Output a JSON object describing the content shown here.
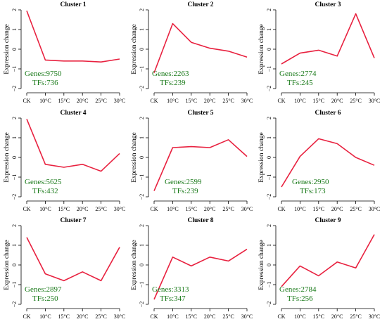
{
  "colors": {
    "line": "#e8213f",
    "annotation": "#1a7a1a",
    "axis": "#000000"
  },
  "chart_data": [
    {
      "type": "line",
      "title": "Cluster 1",
      "ylabel": "Expression change",
      "categories": [
        "CK",
        "10°C",
        "15°C",
        "20°C",
        "25°C",
        "30°C"
      ],
      "values": [
        1.95,
        -0.55,
        -0.6,
        -0.6,
        -0.65,
        -0.5
      ],
      "ylim": [
        -2,
        2
      ],
      "yticks": [
        "2",
        "1",
        "0",
        "−1",
        "−2"
      ],
      "annotation": [
        "Genes:9750",
        "TFs:736"
      ],
      "annotation_anchor": "left"
    },
    {
      "type": "line",
      "title": "Cluster 2",
      "ylabel": "Expression change",
      "categories": [
        "CK",
        "10°C",
        "15°C",
        "20°C",
        "25°C",
        "30°C"
      ],
      "values": [
        -1.2,
        1.3,
        0.35,
        0.05,
        -0.1,
        -0.4
      ],
      "ylim": [
        -2,
        2
      ],
      "yticks": [
        "2",
        "1",
        "0",
        "−1",
        "−2"
      ],
      "annotation": [
        "Genes:2263",
        "TFs:239"
      ],
      "annotation_anchor": "left"
    },
    {
      "type": "line",
      "title": "Cluster 3",
      "ylabel": "Expression change",
      "categories": [
        "CK",
        "10°C",
        "15°C",
        "20°C",
        "25°C",
        "30°C"
      ],
      "values": [
        -0.75,
        -0.2,
        -0.05,
        -0.35,
        1.8,
        -0.45
      ],
      "ylim": [
        -2,
        2
      ],
      "yticks": [
        "2",
        "1",
        "0",
        "−1",
        "−2"
      ],
      "annotation": [
        "Genes:2774",
        "TFs:245"
      ],
      "annotation_anchor": "left"
    },
    {
      "type": "line",
      "title": "Cluster 4",
      "ylabel": "Expression change",
      "categories": [
        "CK",
        "10°C",
        "15°C",
        "20°C",
        "25°C",
        "30°C"
      ],
      "values": [
        1.95,
        -0.35,
        -0.5,
        -0.35,
        -0.7,
        0.2
      ],
      "ylim": [
        -2,
        2
      ],
      "yticks": [
        "2",
        "1",
        "0",
        "−1",
        "−2"
      ],
      "annotation": [
        "Genes:5625",
        "TFs:432"
      ],
      "annotation_anchor": "left"
    },
    {
      "type": "line",
      "title": "Cluster 5",
      "ylabel": "Expression change",
      "categories": [
        "CK",
        "10°C",
        "15°C",
        "20°C",
        "25°C",
        "30°C"
      ],
      "values": [
        -1.7,
        0.5,
        0.55,
        0.5,
        0.9,
        0.05
      ],
      "ylim": [
        -2,
        2
      ],
      "yticks": [
        "2",
        "1",
        "0",
        "−1",
        "−2"
      ],
      "annotation": [
        "Genes:2599",
        "TFs:239"
      ],
      "annotation_anchor": "center"
    },
    {
      "type": "line",
      "title": "Cluster 6",
      "ylabel": "Expression change",
      "categories": [
        "CK",
        "10°C",
        "15°C",
        "20°C",
        "25°C",
        "30°C"
      ],
      "values": [
        -1.5,
        0.05,
        0.95,
        0.7,
        0.0,
        -0.4
      ],
      "ylim": [
        -2,
        2
      ],
      "yticks": [
        "2",
        "1",
        "0",
        "−1",
        "−2"
      ],
      "annotation": [
        "Genes:2950",
        "TFs:173"
      ],
      "annotation_anchor": "center"
    },
    {
      "type": "line",
      "title": "Cluster 7",
      "ylabel": "Expression change",
      "categories": [
        "CK",
        "10°C",
        "15°C",
        "20°C",
        "25°C",
        "30°C"
      ],
      "values": [
        1.4,
        -0.45,
        -0.8,
        -0.35,
        -0.8,
        0.9
      ],
      "ylim": [
        -2,
        2
      ],
      "yticks": [
        "2",
        "1",
        "0",
        "−1",
        "−2"
      ],
      "annotation": [
        "Genes:2897",
        "TFs:250"
      ],
      "annotation_anchor": "left"
    },
    {
      "type": "line",
      "title": "Cluster 8",
      "ylabel": "Expression change",
      "categories": [
        "CK",
        "10°C",
        "15°C",
        "20°C",
        "25°C",
        "30°C"
      ],
      "values": [
        -1.75,
        0.4,
        -0.05,
        0.4,
        0.2,
        0.8
      ],
      "ylim": [
        -2,
        2
      ],
      "yticks": [
        "2",
        "1",
        "0",
        "−1",
        "−2"
      ],
      "annotation": [
        "Genes:3313",
        "TFs:347"
      ],
      "annotation_anchor": "left"
    },
    {
      "type": "line",
      "title": "Cluster 9",
      "ylabel": "Expression change",
      "categories": [
        "CK",
        "10°C",
        "15°C",
        "20°C",
        "25°C",
        "30°C"
      ],
      "values": [
        -1.1,
        -0.05,
        -0.55,
        0.15,
        -0.15,
        1.55
      ],
      "ylim": [
        -2,
        2
      ],
      "yticks": [
        "2",
        "1",
        "0",
        "−1",
        "−2"
      ],
      "annotation": [
        "Genes:2784",
        "TFs:256"
      ],
      "annotation_anchor": "left"
    }
  ]
}
